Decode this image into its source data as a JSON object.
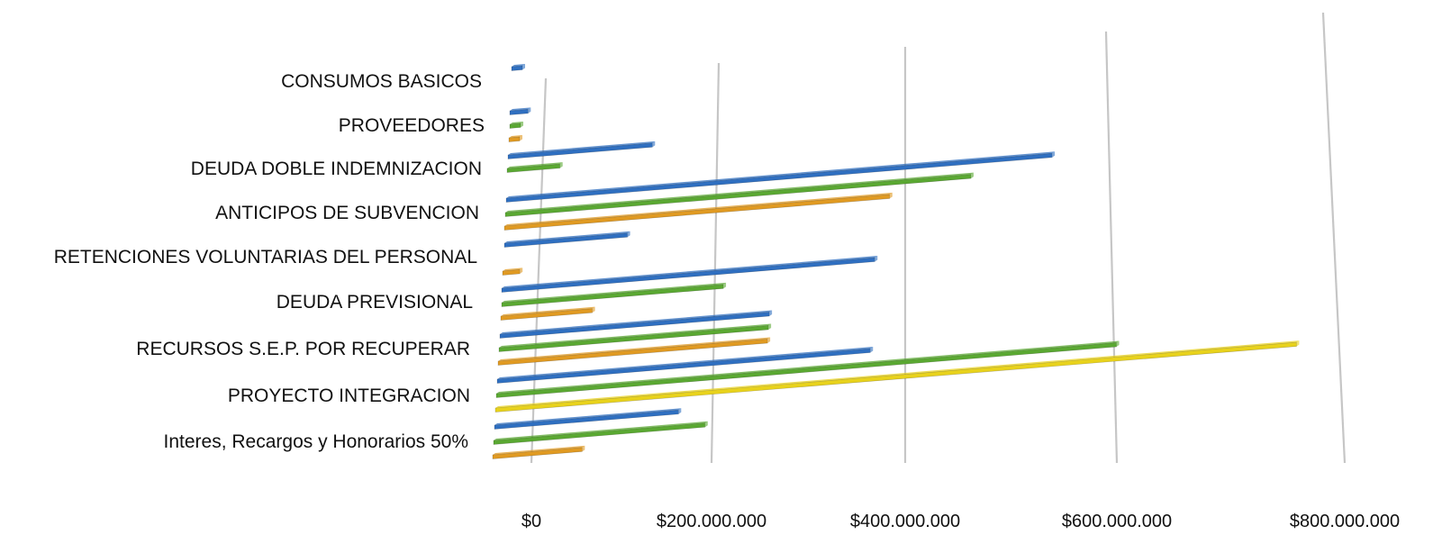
{
  "chart_data": {
    "type": "bar",
    "orientation": "horizontal",
    "perspective": "3d",
    "categories": [
      "CONSUMOS BASICOS",
      "PROVEEDORES",
      "DEUDA DOBLE INDEMNIZACION",
      "ANTICIPOS DE SUBVENCION",
      "RETENCIONES VOLUNTARIAS DEL PERSONAL",
      "DEUDA PREVISIONAL",
      "RECURSOS S.E.P. POR RECUPERAR",
      "PROYECTO INTEGRACION",
      "Interes, Recargos y Honorarios 50%"
    ],
    "series": [
      {
        "color": "#2f6fc0",
        "values": [
          5000000,
          18000000,
          142000000,
          537000000,
          121000000,
          367000000,
          265000000,
          367000000,
          181000000
        ]
      },
      {
        "color": "#5aa832",
        "values": [
          0,
          7000000,
          52000000,
          458000000,
          0,
          218000000,
          265000000,
          610000000,
          208000000
        ]
      },
      {
        "color": "#e09a22",
        "values": [
          0,
          8000000,
          0,
          379000000,
          17000000,
          90000000,
          265000000,
          788000000,
          88000000
        ]
      }
    ],
    "highlight": {
      "category": "PROYECTO INTEGRACION",
      "series_index": 2,
      "color": "#e8d21c"
    },
    "x_ticks": [
      "$0",
      "$200.000.000",
      "$400.000.000",
      "$600.000.000",
      "$800.000.000"
    ],
    "xlim": [
      0,
      800000000
    ],
    "grid": true,
    "legend": "none"
  }
}
